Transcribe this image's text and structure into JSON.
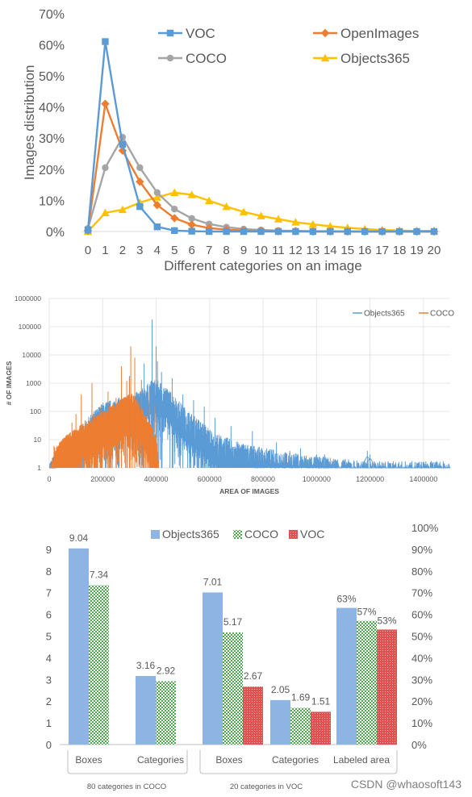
{
  "watermark": "CSDN @whaosoft143",
  "chart_data": [
    {
      "type": "line",
      "xlabel": "Different categories on an image",
      "ylabel": "Images distribution",
      "x": [
        0,
        1,
        2,
        3,
        4,
        5,
        6,
        7,
        8,
        9,
        10,
        11,
        12,
        13,
        14,
        15,
        16,
        17,
        18,
        19,
        20
      ],
      "x_ticks": [
        "0",
        "1",
        "2",
        "3",
        "4",
        "5",
        "6",
        "7",
        "8",
        "9",
        "10",
        "11",
        "12",
        "13",
        "14",
        "15",
        "16",
        "17",
        "18",
        "19",
        "20"
      ],
      "y_ticks": [
        "0%",
        "10%",
        "20%",
        "30%",
        "40%",
        "50%",
        "60%",
        "70%"
      ],
      "ylim": [
        0,
        70
      ],
      "grid": false,
      "legend_position": "top",
      "series": [
        {
          "name": "VOC",
          "color": "#5b9bd5",
          "marker": "square",
          "values": [
            0.5,
            61,
            28,
            8,
            1.5,
            0.3,
            0.1,
            0,
            0,
            0,
            0,
            0,
            0,
            0,
            0,
            0,
            0,
            0,
            0,
            0,
            0
          ]
        },
        {
          "name": "OpenImages",
          "color": "#ed7d31",
          "marker": "diamond",
          "values": [
            0.3,
            41,
            26,
            16,
            8.5,
            4.3,
            2.2,
            1.1,
            0.6,
            0.3,
            0.2,
            0.1,
            0.1,
            0,
            0,
            0,
            0,
            0,
            0,
            0,
            0
          ]
        },
        {
          "name": "COCO",
          "color": "#a5a5a5",
          "marker": "circle",
          "values": [
            1,
            20.5,
            30.3,
            20.5,
            12.5,
            7.2,
            4.2,
            2.4,
            1.4,
            0.8,
            0.5,
            0.3,
            0.2,
            0.1,
            0.1,
            0,
            0,
            0,
            0,
            0,
            0
          ]
        },
        {
          "name": "Objects365",
          "color": "#ffc000",
          "marker": "triangle",
          "values": [
            0,
            6,
            7,
            9.3,
            11,
            12.5,
            11.8,
            9.9,
            8,
            6.3,
            5,
            4,
            3,
            2.3,
            1.7,
            1.2,
            0.8,
            0.5,
            0.3,
            0.2,
            0.2
          ]
        }
      ]
    },
    {
      "type": "line",
      "xlabel": "AREA OF IMAGES",
      "ylabel": "# OF IMAGES",
      "yscale": "log",
      "ylim": [
        1,
        1000000
      ],
      "xlim": [
        0,
        1500000
      ],
      "x_ticks": [
        "0",
        "200000",
        "400000",
        "600000",
        "800000",
        "1000000",
        "1200000",
        "1400000"
      ],
      "y_ticks": [
        "1",
        "10",
        "100",
        "1000",
        "10000",
        "100000",
        "1000000"
      ],
      "grid": true,
      "legend_position": "top-right",
      "series": [
        {
          "name": "Objects365",
          "color": "#5b9bd5",
          "envelope": [
            [
              0,
              1
            ],
            [
              60000,
              5
            ],
            [
              120000,
              20
            ],
            [
              200000,
              120
            ],
            [
              300000,
              220
            ],
            [
              340000,
              320
            ],
            [
              380000,
              700
            ],
            [
              400000,
              800
            ],
            [
              430000,
              500
            ],
            [
              470000,
              200
            ],
            [
              520000,
              60
            ],
            [
              570000,
              25
            ],
            [
              620000,
              10
            ],
            [
              700000,
              5
            ],
            [
              800000,
              3
            ],
            [
              900000,
              2
            ],
            [
              1000000,
              1.5
            ],
            [
              1100000,
              1.2
            ],
            [
              1200000,
              1
            ],
            [
              1500000,
              1
            ]
          ],
          "spikes": [
            [
              120000,
              20
            ],
            [
              160000,
              80
            ],
            [
              210000,
              150
            ],
            [
              260000,
              300
            ],
            [
              300000,
              1800
            ],
            [
              340000,
              500
            ],
            [
              355000,
              5000
            ],
            [
              385000,
              180000
            ],
            [
              400000,
              20000
            ],
            [
              405000,
              6000
            ],
            [
              420000,
              2500
            ],
            [
              460000,
              1500
            ],
            [
              500000,
              400
            ],
            [
              540000,
              250
            ],
            [
              580000,
              150
            ],
            [
              620000,
              60
            ],
            [
              680000,
              30
            ],
            [
              760000,
              20
            ],
            [
              850000,
              8
            ],
            [
              900000,
              4
            ],
            [
              940000,
              5
            ],
            [
              1000000,
              3
            ],
            [
              1030000,
              3
            ],
            [
              1070000,
              2
            ],
            [
              1190000,
              4
            ],
            [
              1200000,
              3
            ]
          ]
        },
        {
          "name": "COCO",
          "color": "#ed7d31",
          "envelope": [
            [
              5000,
              1
            ],
            [
              20000,
              3
            ],
            [
              60000,
              8
            ],
            [
              100000,
              15
            ],
            [
              150000,
              30
            ],
            [
              200000,
              60
            ],
            [
              250000,
              120
            ],
            [
              290000,
              220
            ],
            [
              310000,
              250
            ],
            [
              330000,
              150
            ],
            [
              360000,
              50
            ],
            [
              380000,
              20
            ],
            [
              400000,
              8
            ],
            [
              410000,
              1
            ]
          ],
          "spikes": [
            [
              18000,
              6
            ],
            [
              40000,
              8
            ],
            [
              70000,
              15
            ],
            [
              85000,
              40
            ],
            [
              100000,
              80
            ],
            [
              120000,
              400
            ],
            [
              160000,
              1000
            ],
            [
              190000,
              150
            ],
            [
              220000,
              500
            ],
            [
              250000,
              300
            ],
            [
              270000,
              4000
            ],
            [
              290000,
              1200
            ],
            [
              300000,
              1500
            ],
            [
              305000,
              20000
            ],
            [
              320000,
              8000
            ],
            [
              345000,
              1300
            ],
            [
              375000,
              500
            ],
            [
              395000,
              150
            ]
          ]
        }
      ]
    },
    {
      "type": "bar",
      "categories": [
        "Boxes",
        "Categories",
        "Boxes",
        "Categories",
        "Labeled area"
      ],
      "groups": [
        {
          "label": "80 categories in COCO",
          "categories": [
            "Boxes",
            "Categories"
          ]
        },
        {
          "label": "20 categories in VOC",
          "categories": [
            "Boxes",
            "Categories",
            "Labeled area"
          ]
        }
      ],
      "left_y_ticks": [
        "0",
        "1",
        "2",
        "3",
        "4",
        "5",
        "6",
        "7",
        "8",
        "9"
      ],
      "right_y_ticks": [
        "0%",
        "10%",
        "20%",
        "30%",
        "40%",
        "50%",
        "60%",
        "70%",
        "80%",
        "90%",
        "100%"
      ],
      "ylim_left": [
        0,
        10
      ],
      "ylim_right": [
        0,
        100
      ],
      "legend_position": "top",
      "series": [
        {
          "name": "Objects365",
          "color": "#8db4e2",
          "pattern": "solid",
          "values": [
            9.04,
            3.16,
            7.01,
            2.05,
            63
          ],
          "labels": [
            "9.04",
            "3.16",
            "7.01",
            "2.05",
            "63%"
          ]
        },
        {
          "name": "COCO",
          "color": "#4ea64e",
          "pattern": "checker",
          "values": [
            7.34,
            2.92,
            5.17,
            1.69,
            57
          ],
          "labels": [
            "7.34",
            "2.92",
            "5.17",
            "1.69",
            "57%"
          ]
        },
        {
          "name": "VOC",
          "color": "#e05252",
          "pattern": "dots",
          "values": [
            null,
            null,
            2.67,
            1.51,
            53
          ],
          "labels": [
            "",
            "",
            "2.67",
            "1.51",
            "53%"
          ]
        }
      ]
    }
  ]
}
